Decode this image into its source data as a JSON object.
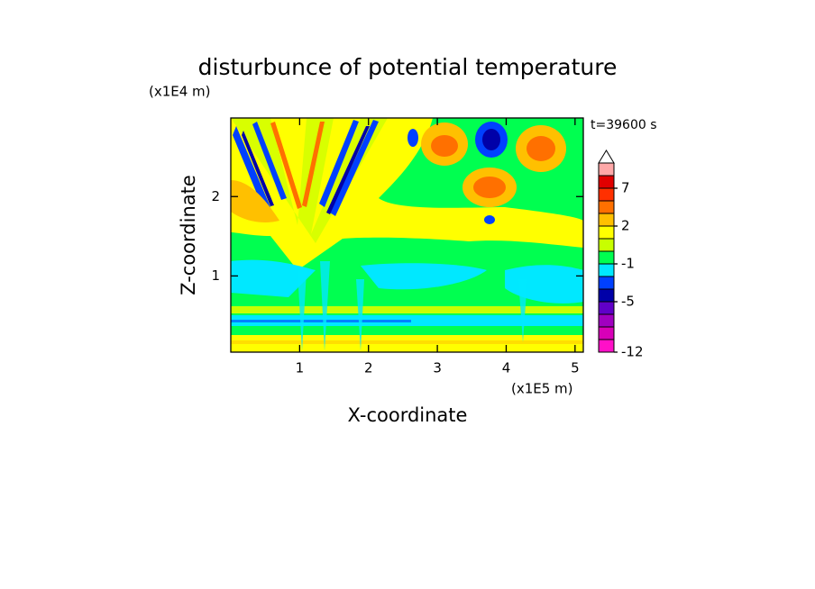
{
  "chart_data": {
    "type": "contour",
    "title": "disturbunce of potential temperature",
    "x_label": "X-coordinate",
    "y_label": "Z-coordinate",
    "x_unit": "(x1E5 m)",
    "y_unit": "(x1E4 m)",
    "annotation": "t=39600 s",
    "xlim": [
      0,
      5.12
    ],
    "ylim": [
      0.04,
      2.99
    ],
    "xticks": [
      1,
      2,
      3,
      4,
      5
    ],
    "yticks": [
      1,
      2
    ],
    "colorbar": {
      "levels": [
        -12,
        -10,
        -8,
        -6,
        -5,
        -3,
        -2,
        -1,
        0,
        1,
        2,
        3,
        5,
        7,
        9
      ],
      "colors": [
        "#ff10c8",
        "#d800b8",
        "#a000c0",
        "#6000c8",
        "#0000a8",
        "#0040ff",
        "#00e8ff",
        "#00ff50",
        "#c8ff00",
        "#ffff00",
        "#ffc000",
        "#ff7000",
        "#ff3000",
        "#e00000",
        "#ffa8a8"
      ],
      "ticks": [
        -12,
        -5,
        -1,
        2,
        7
      ]
    }
  }
}
